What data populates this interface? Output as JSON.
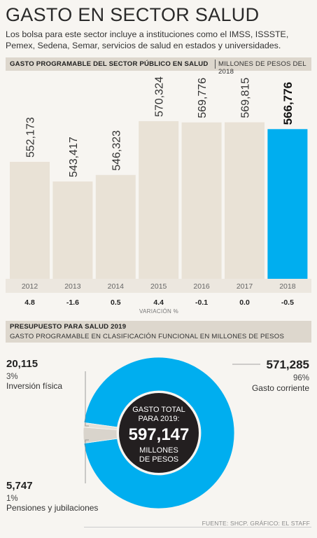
{
  "header": {
    "title": "GASTO EN SECTOR SALUD",
    "subtitle": "Los bolsa para este sector incluye a instituciones como el IMSS, ISSSTE, Pemex, Sedena, Semar, servicios de salud en estados y universidades."
  },
  "section1": {
    "title": "GASTO PROGRAMABLE DEL SECTOR PÚBLICO EN SALUD",
    "unit": "MILLONES DE PESOS DEL 2018"
  },
  "section2": {
    "title": "PRESUPUESTO PARA SALUD 2019",
    "subtitle": "GASTO PROGRAMABLE EN CLASIFICACIÓN FUNCIONAL EN MILLONES DE PESOS"
  },
  "colors": {
    "bar": "#e9e2d6",
    "highlight": "#00aeef",
    "donut_small": "#d9d4cc",
    "center": "#231f20"
  },
  "chart_data": [
    {
      "type": "bar",
      "categories": [
        "2012",
        "2013",
        "2014",
        "2015",
        "2016",
        "2017",
        "2018"
      ],
      "values": [
        552173,
        543417,
        546323,
        570324,
        569776,
        569815,
        566776
      ],
      "value_labels": [
        "552,173",
        "543,417",
        "546,323",
        "570,324",
        "569,776",
        "569,815",
        "566,776"
      ],
      "highlight_index": 6,
      "variation_label": "VARIACIÓN %",
      "variation": [
        "4.8",
        "-1.6",
        "0.5",
        "4.4",
        "-0.1",
        "0.0",
        "-0.5"
      ]
    },
    {
      "type": "pie",
      "center_text": {
        "line1": "GASTO TOTAL",
        "line2": "PARA 2019:",
        "value": "597,147",
        "line3": "MILLONES",
        "line4": "DE PESOS"
      },
      "total": 597147,
      "slices": [
        {
          "label": "Gasto corriente",
          "value": 571285,
          "value_label": "571,285",
          "percent": "96%"
        },
        {
          "label": "Inversión física",
          "value": 20115,
          "value_label": "20,115",
          "percent": "3%"
        },
        {
          "label": "Pensiones y jubilaciones",
          "value": 5747,
          "value_label": "5,747",
          "percent": "1%"
        }
      ]
    }
  ],
  "source": "FUENTE: SHCP. GRÁFICO: EL STAFF"
}
